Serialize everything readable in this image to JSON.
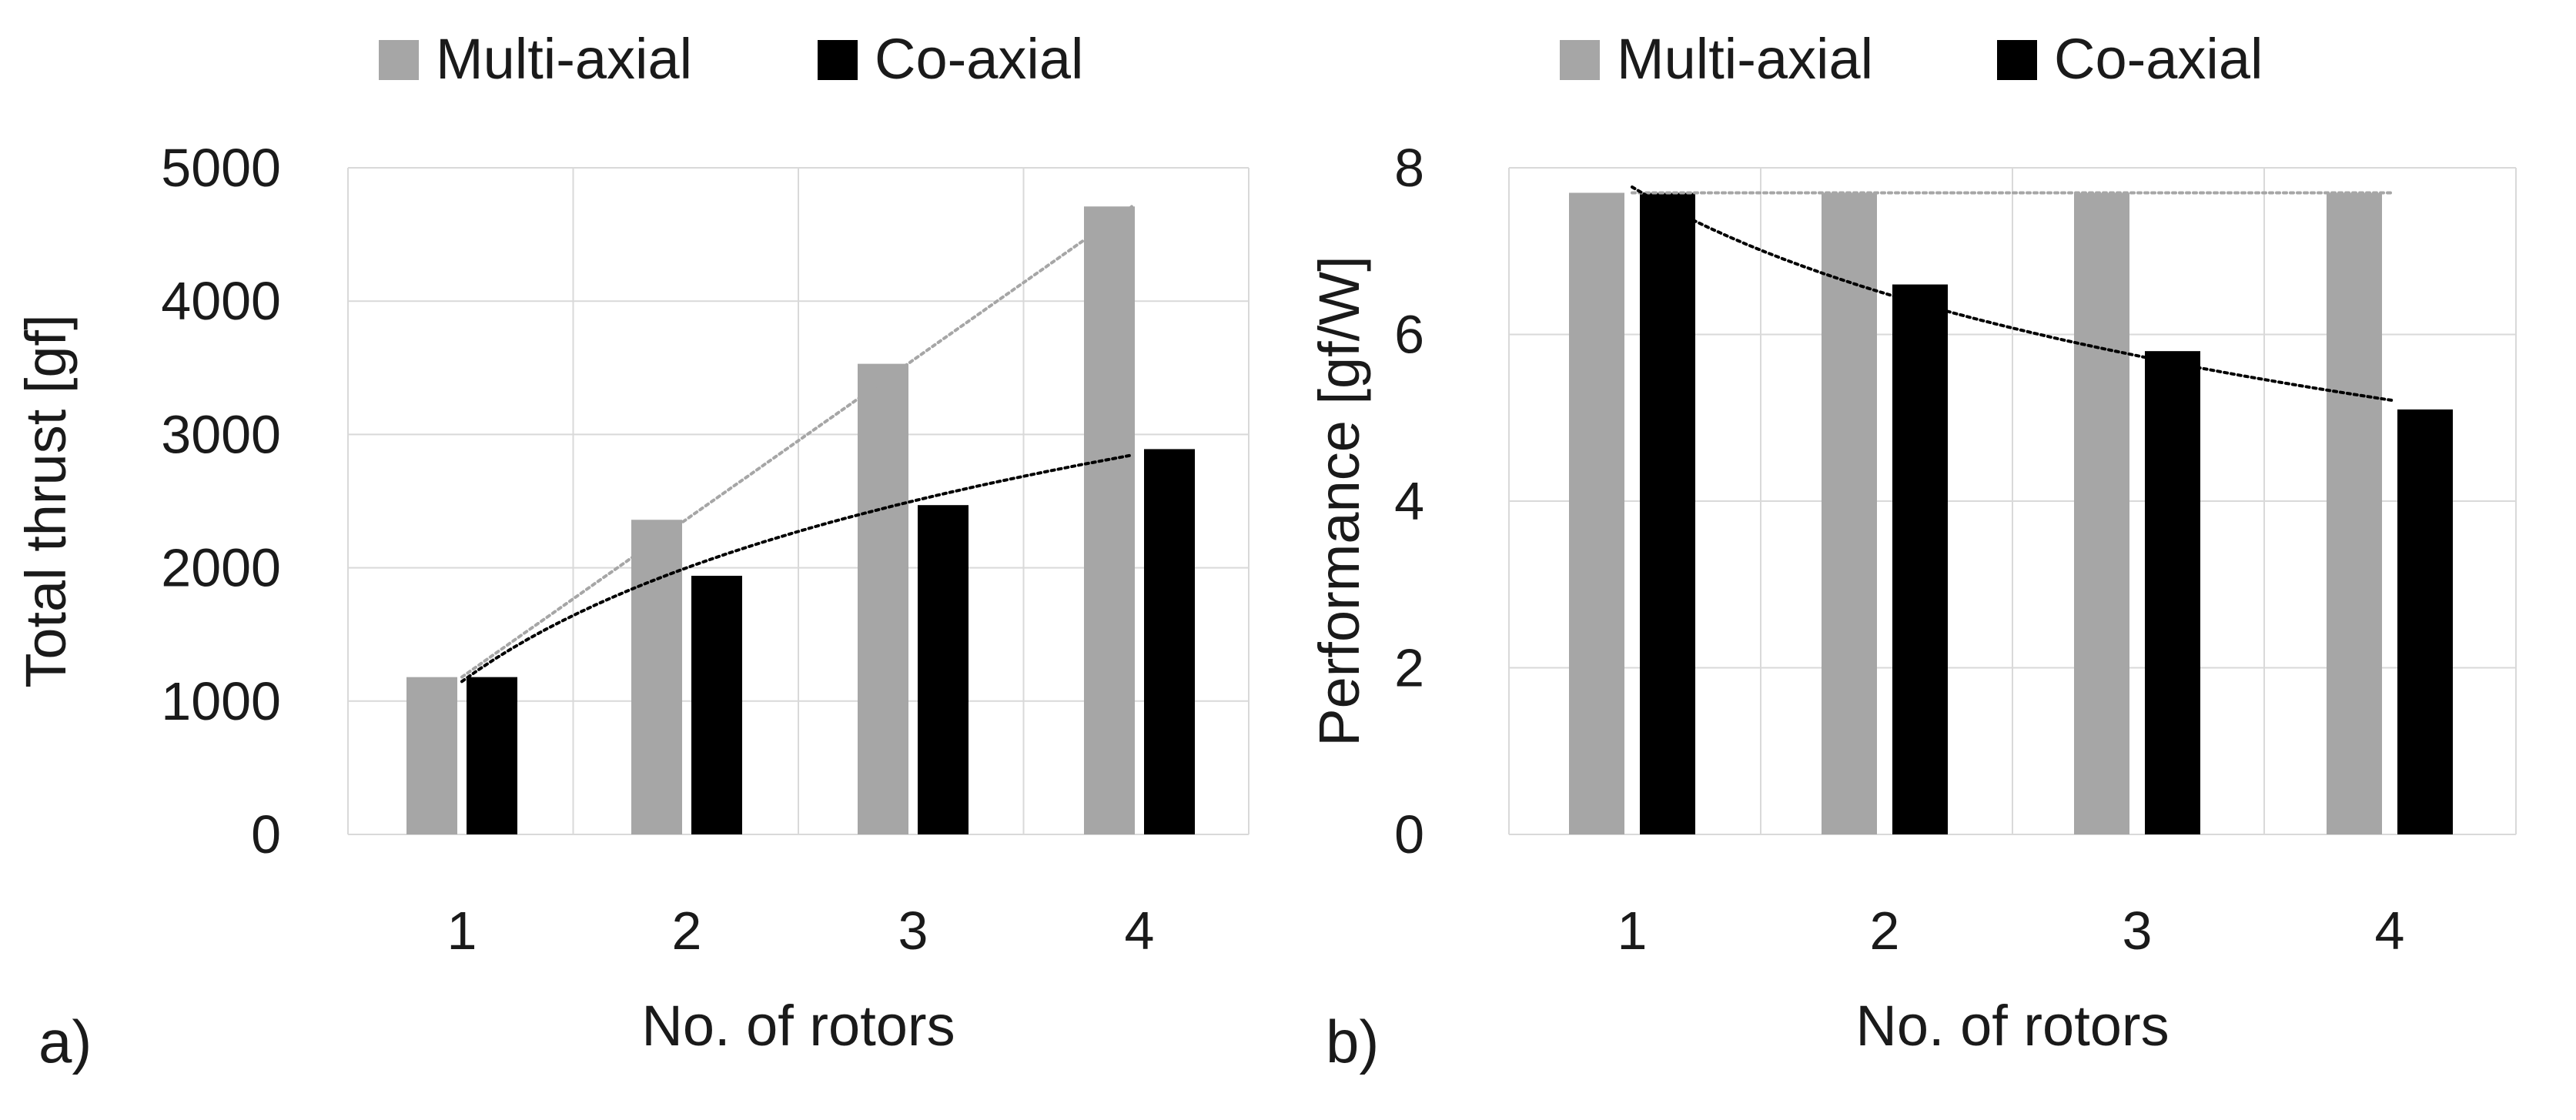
{
  "chart_data": [
    {
      "panel_label": "a)",
      "type": "bar",
      "categories": [
        "1",
        "2",
        "3",
        "4"
      ],
      "series": [
        {
          "name": "Multi-axial",
          "values": [
            1180,
            2360,
            3530,
            4710
          ]
        },
        {
          "name": "Co-axial",
          "values": [
            1180,
            1940,
            2470,
            2890
          ]
        }
      ],
      "trendlines": [
        {
          "series": "Multi-axial",
          "kind": "linear"
        },
        {
          "series": "Co-axial",
          "kind": "logarithmic"
        }
      ],
      "title": "",
      "xlabel": "No. of rotors",
      "ylabel": "Total thrust [gf]",
      "ylim": [
        0,
        5000
      ],
      "yticks": [
        "0",
        "1000",
        "2000",
        "3000",
        "4000",
        "5000"
      ],
      "grid": true,
      "legend": "top"
    },
    {
      "panel_label": "b)",
      "type": "bar",
      "categories": [
        "1",
        "2",
        "3",
        "4"
      ],
      "series": [
        {
          "name": "Multi-axial",
          "values": [
            7.7,
            7.7,
            7.7,
            7.7
          ]
        },
        {
          "name": "Co-axial",
          "values": [
            7.7,
            6.6,
            5.8,
            5.1
          ]
        }
      ],
      "trendlines": [
        {
          "series": "Multi-axial",
          "kind": "linear"
        },
        {
          "series": "Co-axial",
          "kind": "logarithmic"
        }
      ],
      "title": "",
      "xlabel": "No. of rotors",
      "ylabel": "Performance [gf/W]",
      "ylim": [
        0,
        8
      ],
      "yticks": [
        "0",
        "2",
        "4",
        "6",
        "8"
      ],
      "grid": true,
      "legend": "top"
    }
  ],
  "colors": {
    "multi_axial": "#a6a6a6",
    "co_axial": "#000000",
    "multi_trend": "#a6a6a6",
    "co_trend": "#000000",
    "grid": "#d9d9d9"
  }
}
